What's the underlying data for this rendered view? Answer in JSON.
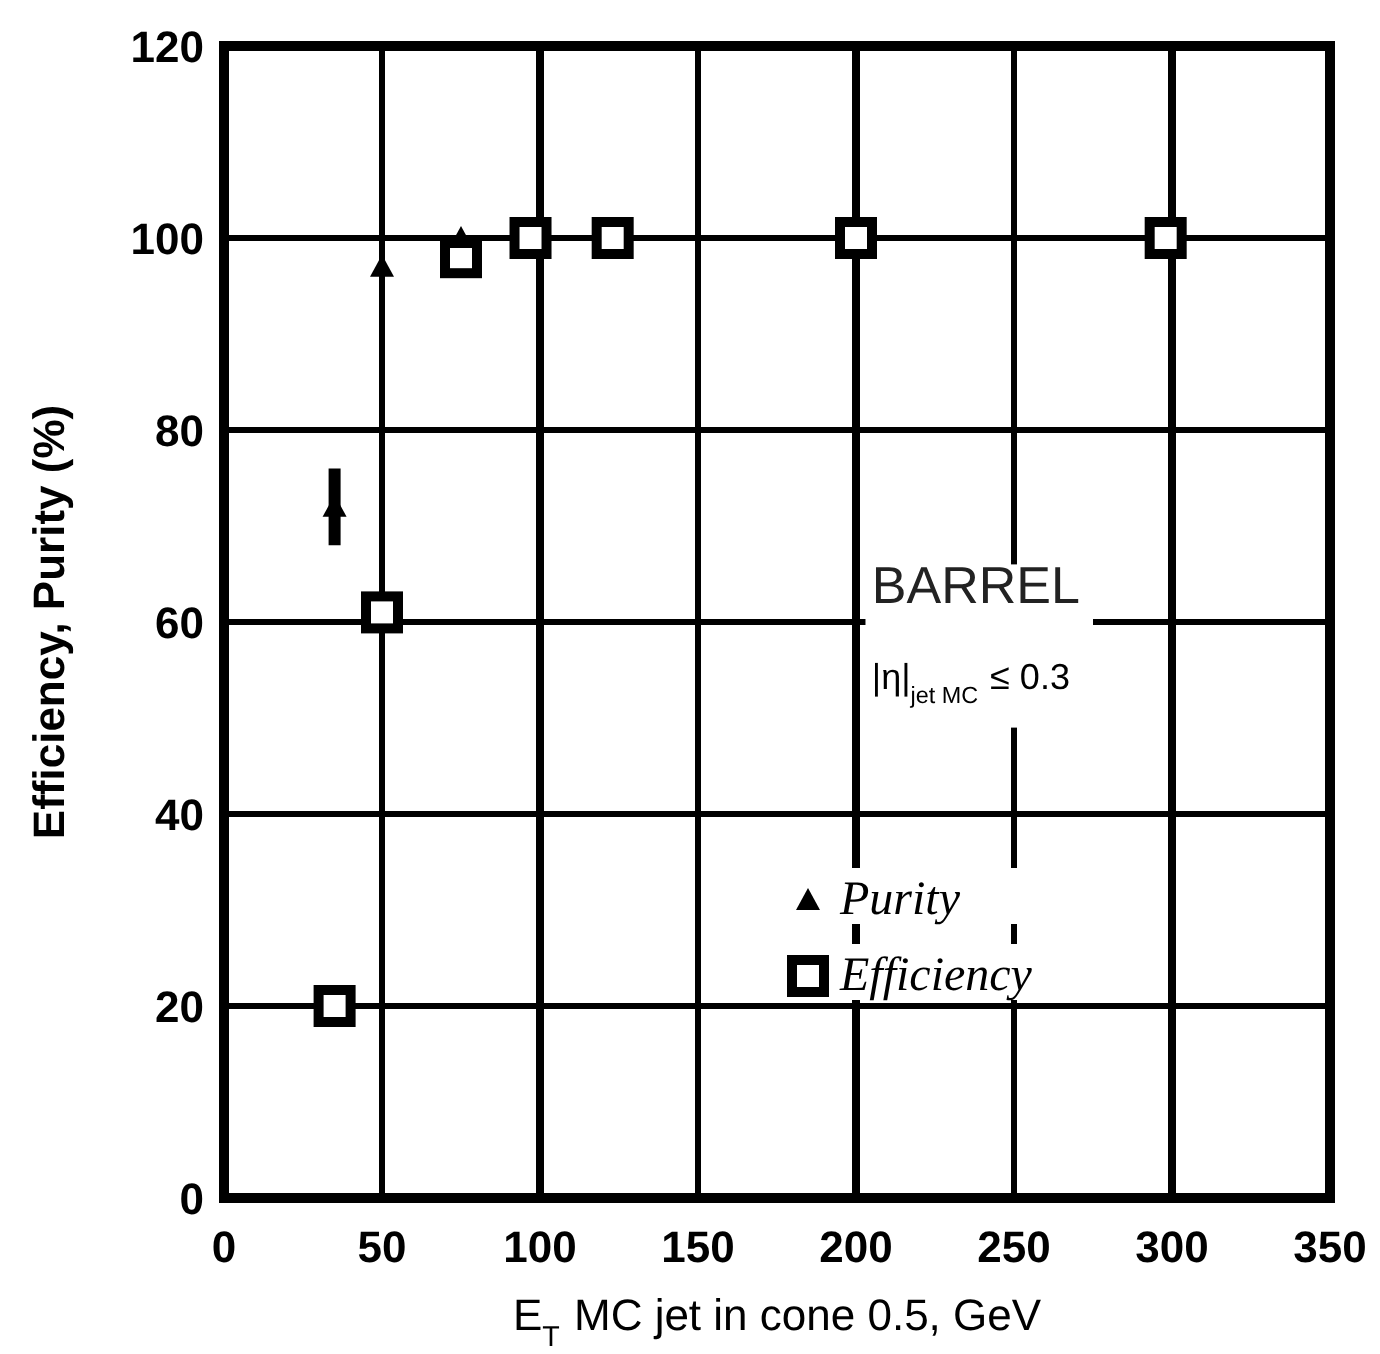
{
  "chart_data": {
    "type": "scatter",
    "xlabel": "E$_{T}$ MC jet in cone 0.5, GeV",
    "ylabel": "Efficiency, Purity (%)",
    "xlim": [
      0,
      350
    ],
    "ylim": [
      0,
      120
    ],
    "xticks": [
      0,
      50,
      100,
      150,
      200,
      250,
      300,
      350
    ],
    "yticks": [
      0,
      20,
      40,
      60,
      80,
      100,
      120
    ],
    "grid": true,
    "legend": "right",
    "annotations": [
      "BARREL",
      "|η|$_{jet MC}$ ≤ 0.3"
    ],
    "series": [
      {
        "name": "Purity",
        "color": "#000000",
        "marker": "triangle",
        "x": [
          35,
          50,
          75
        ],
        "values": [
          72,
          97,
          100
        ],
        "errors": [
          4,
          null,
          null
        ]
      },
      {
        "name": "Efficiency",
        "color": "#000000",
        "marker": "square",
        "x": [
          35,
          50,
          75,
          97,
          123,
          200,
          298
        ],
        "values": [
          20,
          61,
          98,
          100,
          100,
          100,
          100
        ]
      }
    ]
  }
}
